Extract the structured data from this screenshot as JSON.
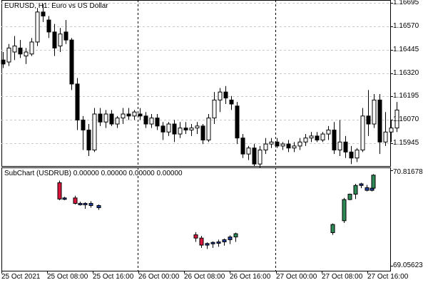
{
  "main": {
    "header": "EURUSD, H1:  Euro vs US Dollar",
    "symbol": "EURUSD",
    "timeframe": "H1",
    "description": "Euro vs US Dollar",
    "y_ticks": [
      "1.16695",
      "1.16570",
      "1.16445",
      "1.16320",
      "1.16195",
      "1.16070",
      "1.15945"
    ]
  },
  "subchart": {
    "header": "SubChart (USDRUB) 0.00000 0.00000 0.00000 0.00000",
    "y_top": "70.81678",
    "y_bottom": "69.05623"
  },
  "x_ticks": [
    "25 Oct 2021",
    "25 Oct 08:00",
    "25 Oct 16:00",
    "26 Oct 00:00",
    "26 Oct 08:00",
    "26 Oct 16:00",
    "27 Oct 00:00",
    "27 Oct 08:00",
    "27 Oct 16:00"
  ],
  "colors": {
    "bull": "#ffffff",
    "bear": "#000000",
    "sub_bull": "#2e8b57",
    "sub_bear": "#dc143c",
    "sub_body_blue": "#1f3fa0",
    "grid": "#c8c8c8"
  },
  "chart_data": [
    {
      "type": "candlestick",
      "title": "EURUSD, H1:  Euro vs US Dollar",
      "ylim": [
        1.1587,
        1.167
      ],
      "x": [
        "25 Oct 2021",
        "25 Oct 08:00",
        "25 Oct 16:00",
        "26 Oct 00:00",
        "26 Oct 08:00",
        "26 Oct 16:00",
        "27 Oct 00:00",
        "27 Oct 08:00",
        "27 Oct 16:00"
      ],
      "series": [
        {
          "ohlc": [
            [
              1.164,
              1.1644,
              1.1636,
              1.1638
            ],
            [
              1.1639,
              1.1648,
              1.1637,
              1.1646
            ],
            [
              1.1644,
              1.1652,
              1.164,
              1.1647
            ],
            [
              1.1646,
              1.165,
              1.1641,
              1.1643
            ],
            [
              1.1642,
              1.1646,
              1.1638,
              1.1644
            ],
            [
              1.1643,
              1.1651,
              1.1642,
              1.1649
            ],
            [
              1.1649,
              1.1666,
              1.1647,
              1.1664
            ],
            [
              1.1664,
              1.1668,
              1.1659,
              1.1662
            ],
            [
              1.166,
              1.1662,
              1.1651,
              1.1654
            ],
            [
              1.1654,
              1.1658,
              1.1642,
              1.1646
            ],
            [
              1.1647,
              1.1656,
              1.1644,
              1.1653
            ],
            [
              1.1654,
              1.166,
              1.1648,
              1.165
            ],
            [
              1.165,
              1.1651,
              1.1625,
              1.1628
            ],
            [
              1.1628,
              1.1631,
              1.1605,
              1.161
            ],
            [
              1.161,
              1.1612,
              1.1595,
              1.1605
            ],
            [
              1.1605,
              1.1608,
              1.1592,
              1.1595
            ],
            [
              1.1595,
              1.1616,
              1.1594,
              1.1613
            ],
            [
              1.1613,
              1.1616,
              1.1607,
              1.1609
            ],
            [
              1.1609,
              1.1615,
              1.1606,
              1.1613
            ],
            [
              1.1613,
              1.1615,
              1.1607,
              1.1608
            ],
            [
              1.1608,
              1.1612,
              1.1606,
              1.1611
            ],
            [
              1.1611,
              1.1616,
              1.1608,
              1.1613
            ],
            [
              1.1613,
              1.1616,
              1.161,
              1.1612
            ],
            [
              1.1612,
              1.1615,
              1.161,
              1.1614
            ],
            [
              1.1613,
              1.1616,
              1.161,
              1.1612
            ],
            [
              1.1612,
              1.1614,
              1.1606,
              1.1608
            ],
            [
              1.1608,
              1.1613,
              1.1606,
              1.1611
            ],
            [
              1.1611,
              1.1613,
              1.1605,
              1.1607
            ],
            [
              1.1607,
              1.1609,
              1.16,
              1.1604
            ],
            [
              1.1604,
              1.1609,
              1.1602,
              1.1608
            ],
            [
              1.1608,
              1.161,
              1.1599,
              1.1603
            ],
            [
              1.1603,
              1.1609,
              1.1601,
              1.1606
            ],
            [
              1.1606,
              1.1609,
              1.1603,
              1.1605
            ],
            [
              1.1605,
              1.1608,
              1.1602,
              1.1606
            ],
            [
              1.1606,
              1.1609,
              1.1603,
              1.1607
            ],
            [
              1.1607,
              1.1608,
              1.1598,
              1.16
            ],
            [
              1.16,
              1.1613,
              1.1599,
              1.1611
            ],
            [
              1.1611,
              1.1624,
              1.1608,
              1.162
            ],
            [
              1.162,
              1.1626,
              1.1614,
              1.1624
            ],
            [
              1.1624,
              1.1627,
              1.1618,
              1.1621
            ],
            [
              1.162,
              1.1622,
              1.1615,
              1.1618
            ],
            [
              1.1617,
              1.1619,
              1.1598,
              1.1601
            ],
            [
              1.1601,
              1.1603,
              1.1591,
              1.1593
            ],
            [
              1.1593,
              1.1597,
              1.159,
              1.1596
            ],
            [
              1.1596,
              1.1598,
              1.1587,
              1.1588
            ],
            [
              1.1588,
              1.1597,
              1.1586,
              1.1595
            ],
            [
              1.1595,
              1.1601,
              1.1593,
              1.1598
            ],
            [
              1.1598,
              1.1601,
              1.1596,
              1.1599
            ],
            [
              1.1599,
              1.1601,
              1.1596,
              1.1597
            ],
            [
              1.1597,
              1.1599,
              1.1595,
              1.1598
            ],
            [
              1.1598,
              1.16,
              1.1594,
              1.1596
            ],
            [
              1.1596,
              1.1599,
              1.1594,
              1.1597
            ],
            [
              1.1597,
              1.1601,
              1.1595,
              1.1599
            ],
            [
              1.1599,
              1.1603,
              1.1597,
              1.1601
            ],
            [
              1.1601,
              1.1604,
              1.1599,
              1.1602
            ],
            [
              1.1602,
              1.1604,
              1.1599,
              1.16
            ],
            [
              1.16,
              1.1604,
              1.1599,
              1.1603
            ],
            [
              1.1603,
              1.1607,
              1.16,
              1.1605
            ],
            [
              1.1605,
              1.1609,
              1.1593,
              1.1595
            ],
            [
              1.1595,
              1.161,
              1.1592,
              1.1599
            ],
            [
              1.1599,
              1.1602,
              1.1591,
              1.1594
            ],
            [
              1.1594,
              1.1597,
              1.1588,
              1.1591
            ],
            [
              1.1591,
              1.1596,
              1.1589,
              1.1595
            ],
            [
              1.1595,
              1.1616,
              1.1594,
              1.1612
            ],
            [
              1.1612,
              1.1625,
              1.1602,
              1.1608
            ],
            [
              1.1608,
              1.1623,
              1.1606,
              1.162
            ],
            [
              1.162,
              1.1623,
              1.1593,
              1.1599
            ],
            [
              1.1599,
              1.1614,
              1.1597,
              1.1604
            ],
            [
              1.1604,
              1.161,
              1.1599,
              1.1606
            ],
            [
              1.1606,
              1.1619,
              1.1604,
              1.1615
            ]
          ]
        }
      ]
    },
    {
      "type": "candlestick",
      "title": "SubChart (USDRUB) 0.00000 0.00000 0.00000 0.00000",
      "ylim": [
        69.05623,
        70.81678
      ],
      "series": [
        {
          "ohlc": [
            [
              70.6,
              70.64,
              70.28,
              70.3
            ],
            [
              70.3,
              70.34,
              70.28,
              70.32
            ],
            [
              70.32,
              70.36,
              70.2,
              70.22
            ],
            [
              70.22,
              70.25,
              70.18,
              70.2
            ],
            [
              70.2,
              70.24,
              70.12,
              70.22
            ],
            [
              70.22,
              70.26,
              70.14,
              70.18
            ],
            [
              70.14,
              70.2,
              70.1,
              70.18
            ],
            [
              69.64,
              69.69,
              69.51,
              69.58
            ],
            [
              69.58,
              69.62,
              69.4,
              69.45
            ],
            [
              69.45,
              69.5,
              69.38,
              69.48
            ],
            [
              69.48,
              69.52,
              69.4,
              69.5
            ],
            [
              69.5,
              69.55,
              69.42,
              69.51
            ],
            [
              69.51,
              69.57,
              69.44,
              69.55
            ],
            [
              69.55,
              69.63,
              69.47,
              69.6
            ],
            [
              69.6,
              69.68,
              69.51,
              69.66
            ],
            [
              69.68,
              69.85,
              69.64,
              69.83
            ],
            [
              69.9,
              70.32,
              69.86,
              70.29
            ],
            [
              70.29,
              70.4,
              70.28,
              70.39
            ],
            [
              70.39,
              70.58,
              70.3,
              70.55
            ],
            [
              70.55,
              70.6,
              70.5,
              70.58
            ],
            [
              70.51,
              70.56,
              70.44,
              70.46
            ],
            [
              70.46,
              70.53,
              70.44,
              70.5
            ],
            [
              70.5,
              70.76,
              70.48,
              70.74
            ]
          ]
        }
      ]
    }
  ]
}
